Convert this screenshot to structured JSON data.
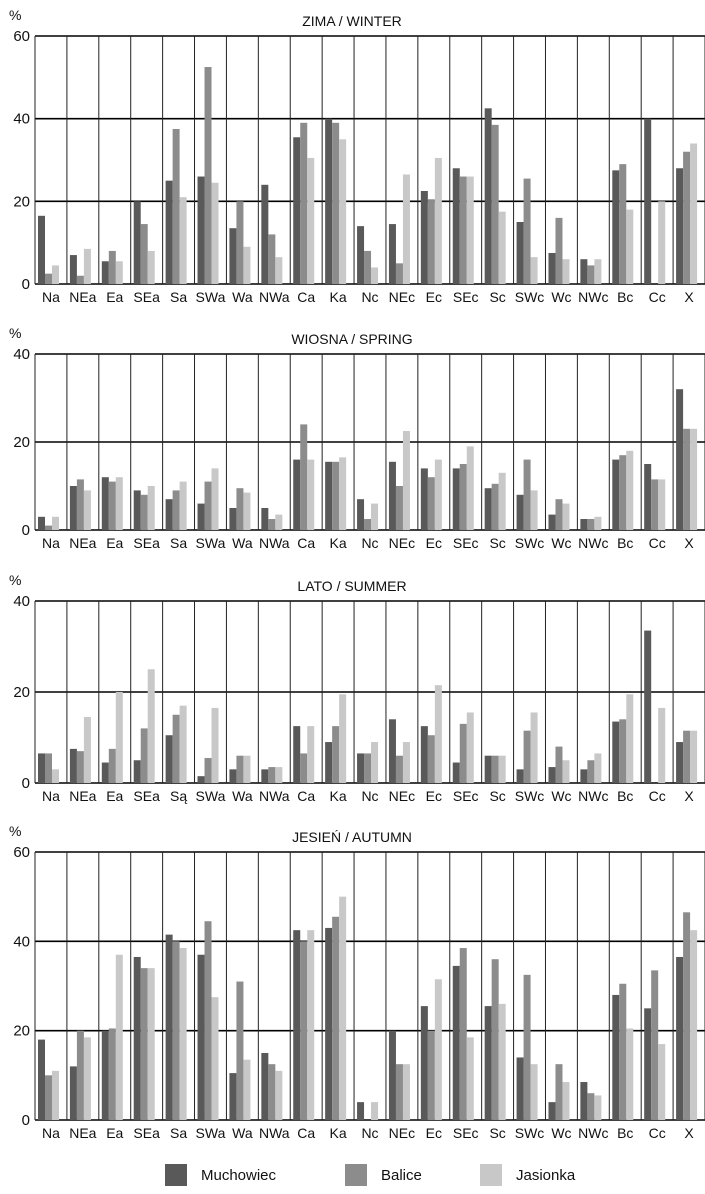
{
  "colors": {
    "Muchowiec": "#595959",
    "Balice": "#8c8c8c",
    "Jasionka": "#c8c8c8"
  },
  "legend": [
    {
      "name": "Muchowiec",
      "color": "#595959"
    },
    {
      "name": "Balice",
      "color": "#8c8c8c"
    },
    {
      "name": "Jasionka",
      "color": "#c8c8c8"
    }
  ],
  "chart_data": [
    {
      "type": "bar",
      "title": "ZIMA / WINTER",
      "ylabel": "%",
      "ylim": [
        0,
        60
      ],
      "yticks": [
        0,
        20,
        40,
        60
      ],
      "grid": true,
      "categories": [
        "Na",
        "NEa",
        "Ea",
        "SEa",
        "Sa",
        "SWa",
        "Wa",
        "NWa",
        "Ca",
        "Ka",
        "Nc",
        "NEc",
        "Ec",
        "SEc",
        "Sc",
        "SWc",
        "Wc",
        "NWc",
        "Bc",
        "Cc",
        "X"
      ],
      "series": [
        {
          "name": "Muchowiec",
          "values": [
            16.5,
            7,
            5.5,
            20,
            25,
            26,
            13.5,
            24,
            35.5,
            40,
            14,
            14.5,
            22.5,
            28,
            42.5,
            15,
            7.5,
            6,
            27.5,
            40,
            28
          ]
        },
        {
          "name": "Balice",
          "values": [
            2.5,
            2,
            8,
            14.5,
            37.5,
            52.5,
            20,
            12,
            39,
            39,
            8,
            5,
            20.5,
            26,
            38.5,
            25.5,
            16,
            4.5,
            29,
            0,
            32
          ]
        },
        {
          "name": "Jasionka",
          "values": [
            4.5,
            8.5,
            5.5,
            8,
            21,
            24.5,
            9,
            6.5,
            30.5,
            35,
            4,
            26.5,
            30.5,
            26,
            17.5,
            6.5,
            6,
            6,
            18,
            20,
            34
          ]
        }
      ]
    },
    {
      "type": "bar",
      "title": "WIOSNA / SPRING",
      "ylabel": "%",
      "ylim": [
        0,
        40
      ],
      "yticks": [
        0,
        20,
        40
      ],
      "grid": true,
      "categories": [
        "Na",
        "NEa",
        "Ea",
        "SEa",
        "Sa",
        "SWa",
        "Wa",
        "NWa",
        "Ca",
        "Ka",
        "Nc",
        "NEc",
        "Ec",
        "SEc",
        "Sc",
        "SWc",
        "Wc",
        "NWc",
        "Bc",
        "Cc",
        "X"
      ],
      "series": [
        {
          "name": "Muchowiec",
          "values": [
            3,
            10,
            12,
            9,
            7,
            6,
            5,
            5,
            16,
            15.5,
            7,
            15.5,
            14,
            14,
            9.5,
            8,
            3.5,
            2.5,
            16,
            15,
            32
          ]
        },
        {
          "name": "Balice",
          "values": [
            1,
            11.5,
            11,
            8,
            9,
            11,
            9.5,
            2.5,
            24,
            15.5,
            2.5,
            10,
            12,
            15,
            10.5,
            16,
            7,
            2.5,
            17,
            11.5,
            23
          ]
        },
        {
          "name": "Jasionka",
          "values": [
            3,
            9,
            12,
            10,
            11,
            14,
            8.5,
            3.5,
            16,
            16.5,
            6,
            22.5,
            16,
            19,
            13,
            9,
            6,
            3,
            18,
            11.5,
            23
          ]
        }
      ]
    },
    {
      "type": "bar",
      "title": "LATO / SUMMER",
      "ylabel": "%",
      "ylim": [
        0,
        40
      ],
      "yticks": [
        0,
        20,
        40
      ],
      "grid": true,
      "categories": [
        "Na",
        "NEa",
        "Ea",
        "SEa",
        "Są",
        "SWa",
        "Wa",
        "NWa",
        "Ca",
        "Ka",
        "Nc",
        "NEc",
        "Ec",
        "SEc",
        "Sc",
        "SWc",
        "Wc",
        "NWc",
        "Bc",
        "Cc",
        "X"
      ],
      "series": [
        {
          "name": "Muchowiec",
          "values": [
            6.5,
            7.5,
            4.5,
            5,
            10.5,
            1.5,
            3,
            3,
            12.5,
            9,
            6.5,
            14,
            12.5,
            4.5,
            6,
            3,
            3.5,
            3,
            13.5,
            33.5,
            9
          ]
        },
        {
          "name": "Balice",
          "values": [
            6.5,
            7,
            7.5,
            12,
            15,
            5.5,
            6,
            3.5,
            6.5,
            12.5,
            6.5,
            6,
            10.5,
            13,
            6,
            11.5,
            8,
            5,
            14,
            0,
            11.5
          ]
        },
        {
          "name": "Jasionka",
          "values": [
            3,
            14.5,
            20,
            25,
            17,
            16.5,
            6,
            3.5,
            12.5,
            19.5,
            9,
            9,
            21.5,
            15.5,
            6,
            15.5,
            5,
            6.5,
            19.5,
            16.5,
            11.5
          ]
        }
      ]
    },
    {
      "type": "bar",
      "title": "JESIEŃ / AUTUMN",
      "ylabel": "%",
      "ylim": [
        0,
        60
      ],
      "yticks": [
        0,
        20,
        40,
        60
      ],
      "grid": true,
      "categories": [
        "Na",
        "NEa",
        "Ea",
        "SEa",
        "Sa",
        "SWa",
        "Wa",
        "NWa",
        "Ca",
        "Ka",
        "Nc",
        "NEc",
        "Ec",
        "SEc",
        "Sc",
        "SWc",
        "Wc",
        "NWc",
        "Bc",
        "Cc",
        "X"
      ],
      "series": [
        {
          "name": "Muchowiec",
          "values": [
            18,
            12,
            20,
            36.5,
            41.5,
            37,
            10.5,
            15,
            42.5,
            43,
            4,
            20,
            25.5,
            34.5,
            25.5,
            14,
            4,
            8.5,
            28,
            25,
            36.5
          ]
        },
        {
          "name": "Balice",
          "values": [
            10,
            20,
            20.5,
            34,
            40,
            44.5,
            31,
            12.5,
            40,
            45.5,
            0,
            12.5,
            20,
            38.5,
            36,
            32.5,
            12.5,
            6,
            30.5,
            33.5,
            46.5
          ]
        },
        {
          "name": "Jasionka",
          "values": [
            11,
            18.5,
            37,
            34,
            38.5,
            27.5,
            13.5,
            11,
            42.5,
            50,
            4,
            12.5,
            31.5,
            18.5,
            26,
            12.5,
            8.5,
            5.5,
            20.5,
            17,
            42.5
          ]
        }
      ]
    }
  ]
}
